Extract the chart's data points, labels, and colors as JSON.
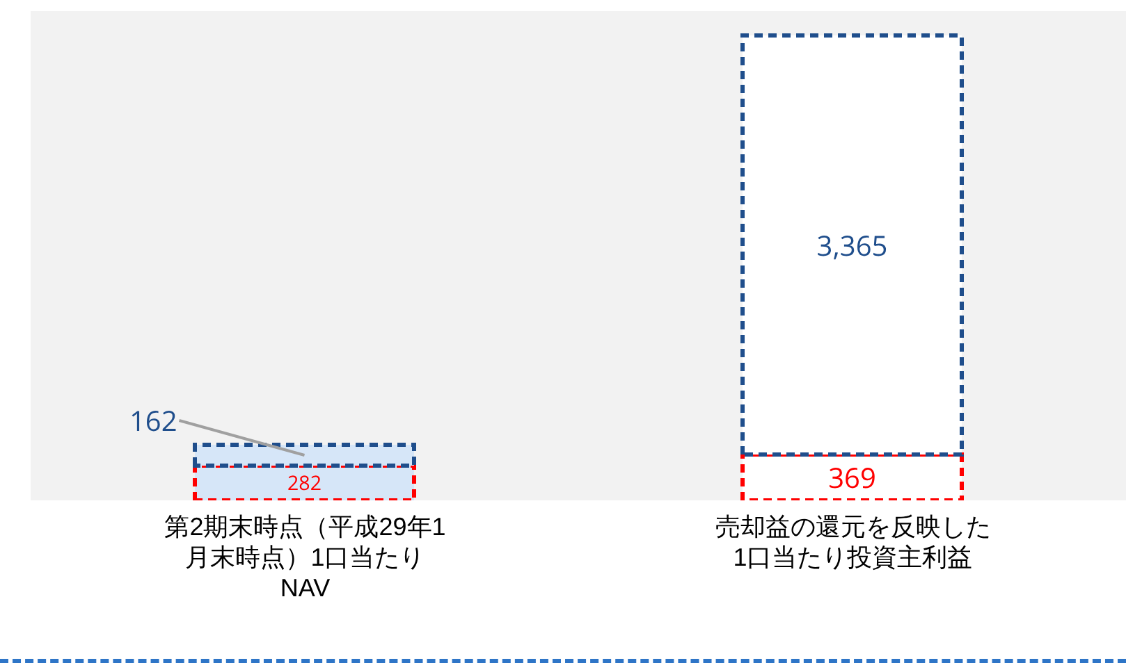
{
  "chart_data": {
    "type": "bar",
    "stacked": true,
    "line_style": "dashed",
    "legend": false,
    "categories": [
      "第2期末時点（平成29年1月末時点）1口当たりNAV",
      "売却益の還元を反映した1口当たり投資主利益"
    ],
    "series": [
      {
        "color": "#ff0000",
        "colors": [
          "#d6e6f8",
          "#ffffff"
        ],
        "values": [
          282,
          369
        ],
        "value_labels": [
          "282",
          "369"
        ]
      },
      {
        "color": "#1f4e8c",
        "colors": [
          "#d6e6f8",
          "#ffffff"
        ],
        "values": [
          162,
          3365
        ],
        "value_labels": [
          "162",
          "3,365"
        ]
      }
    ]
  }
}
